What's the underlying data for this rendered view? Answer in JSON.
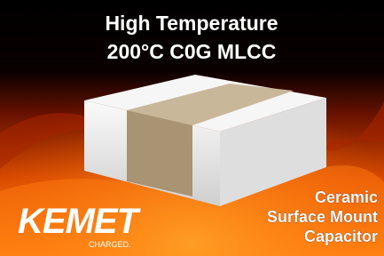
{
  "headline": {
    "line1": "High Temperature",
    "line2": "200°C C0G MLCC"
  },
  "logo": {
    "name": "KEMET",
    "tagline": "CHARGED."
  },
  "caption": {
    "lines": [
      "Ceramic",
      "Surface Mount",
      "Capacitor"
    ]
  }
}
